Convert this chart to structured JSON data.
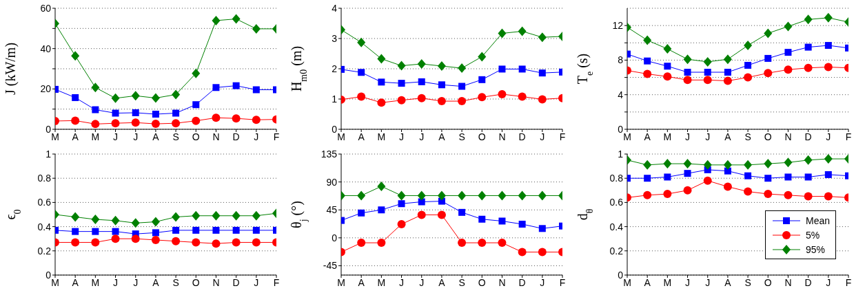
{
  "chart_data": [
    {
      "type": "line",
      "ylabel": "J (kW/m)",
      "categories": [
        "M",
        "A",
        "M",
        "J",
        "J",
        "A",
        "S",
        "O",
        "N",
        "D",
        "J",
        "F"
      ],
      "ylim": [
        0,
        60
      ],
      "yticks": [
        0,
        {
          "value": 10,
          "label": null
        },
        20,
        {
          "value": 30,
          "label": null
        },
        40,
        {
          "value": 50,
          "label": null
        },
        60
      ],
      "grid": "y",
      "legend": false,
      "line_style": "solid",
      "series": [
        {
          "color": "#0000ff",
          "marker": "square",
          "values": [
            19.8,
            15.7,
            9.7,
            8.0,
            8.2,
            7.5,
            8.0,
            12.2,
            20.7,
            21.6,
            19.6,
            19.6
          ]
        },
        {
          "color": "#ff0000",
          "marker": "circle",
          "values": [
            4.1,
            4.3,
            2.6,
            3.0,
            3.3,
            2.7,
            3.0,
            4.2,
            5.7,
            5.4,
            4.7,
            4.9
          ]
        },
        {
          "color": "#008000",
          "marker": "diamond",
          "values": [
            52.4,
            36.4,
            20.7,
            15.4,
            16.6,
            15.5,
            17.2,
            27.7,
            53.9,
            54.7,
            49.8,
            49.8
          ]
        }
      ]
    },
    {
      "type": "line",
      "ylabel": "H$_{m0}$ (m)",
      "categories": [
        "M",
        "A",
        "M",
        "J",
        "J",
        "A",
        "S",
        "O",
        "N",
        "D",
        "J",
        "F"
      ],
      "ylim": [
        0,
        4
      ],
      "yticks": [
        0,
        1,
        2,
        3,
        4
      ],
      "grid": "y",
      "legend": false,
      "line_style": "solid",
      "series": [
        {
          "color": "#0000ff",
          "marker": "square",
          "values": [
            1.98,
            1.88,
            1.56,
            1.52,
            1.57,
            1.47,
            1.42,
            1.64,
            1.99,
            1.99,
            1.86,
            1.89
          ]
        },
        {
          "color": "#ff0000",
          "marker": "circle",
          "values": [
            0.98,
            1.08,
            0.88,
            0.96,
            1.03,
            0.93,
            0.93,
            1.06,
            1.16,
            1.08,
            0.99,
            1.03
          ]
        },
        {
          "color": "#008000",
          "marker": "diamond",
          "values": [
            3.29,
            2.87,
            2.33,
            2.1,
            2.16,
            2.09,
            2.02,
            2.4,
            3.17,
            3.24,
            3.04,
            3.07
          ]
        }
      ]
    },
    {
      "type": "line",
      "ylabel": "T$_{e}$ (s)",
      "categories": [
        "M",
        "A",
        "M",
        "J",
        "J",
        "A",
        "S",
        "O",
        "N",
        "D",
        "J",
        "F"
      ],
      "ylim": [
        0,
        14
      ],
      "yticks": [
        0,
        {
          "value": 2,
          "label": null
        },
        4,
        {
          "value": 6,
          "label": null
        },
        8,
        {
          "value": 10,
          "label": null
        },
        12
      ],
      "grid": "y",
      "legend": false,
      "line_style": "solid",
      "series": [
        {
          "color": "#0000ff",
          "marker": "square",
          "values": [
            8.7,
            7.9,
            7.3,
            6.6,
            6.6,
            6.6,
            7.4,
            8.2,
            8.9,
            9.5,
            9.7,
            9.4
          ]
        },
        {
          "color": "#ff0000",
          "marker": "circle",
          "values": [
            6.8,
            6.4,
            6.1,
            5.7,
            5.7,
            5.6,
            6.0,
            6.5,
            6.9,
            7.1,
            7.2,
            7.1
          ]
        },
        {
          "color": "#008000",
          "marker": "diamond",
          "values": [
            11.8,
            10.3,
            9.3,
            8.1,
            7.8,
            8.1,
            9.7,
            11.1,
            11.9,
            12.7,
            12.9,
            12.4
          ]
        }
      ]
    },
    {
      "type": "line",
      "ylabel": "ϵ$_{0}$",
      "categories": [
        "M",
        "A",
        "M",
        "J",
        "J",
        "A",
        "S",
        "O",
        "N",
        "D",
        "J",
        "F"
      ],
      "ylim": [
        0,
        1
      ],
      "yticks": [
        0,
        0.2,
        0.4,
        0.6,
        0.8,
        1
      ],
      "grid": "y",
      "legend": false,
      "line_style": "solid",
      "series": [
        {
          "color": "#0000ff",
          "marker": "square",
          "values": [
            0.37,
            0.36,
            0.36,
            0.36,
            0.34,
            0.35,
            0.37,
            0.37,
            0.37,
            0.37,
            0.37,
            0.37
          ]
        },
        {
          "color": "#ff0000",
          "marker": "circle",
          "values": [
            0.27,
            0.27,
            0.27,
            0.3,
            0.3,
            0.29,
            0.28,
            0.27,
            0.26,
            0.27,
            0.27,
            0.27
          ]
        },
        {
          "color": "#008000",
          "marker": "diamond",
          "values": [
            0.5,
            0.48,
            0.46,
            0.45,
            0.43,
            0.44,
            0.48,
            0.49,
            0.49,
            0.49,
            0.49,
            0.51
          ]
        }
      ]
    },
    {
      "type": "line",
      "ylabel": "θ$_{j}$ (°)",
      "categories": [
        "M",
        "A",
        "M",
        "J",
        "J",
        "A",
        "S",
        "O",
        "N",
        "D",
        "J",
        "F"
      ],
      "ylim": [
        -60,
        135
      ],
      "yticks": [
        -45,
        0,
        45,
        90,
        135
      ],
      "grid": "y",
      "legend": false,
      "line_style": "solid",
      "series": [
        {
          "color": "#0000ff",
          "marker": "square",
          "values": [
            28,
            40,
            45,
            55,
            58,
            59,
            41,
            30,
            27,
            22,
            15,
            19
          ]
        },
        {
          "color": "#ff0000",
          "marker": "circle",
          "values": [
            -23,
            -8,
            -8,
            22,
            37,
            37,
            -8,
            -8,
            -8,
            -23,
            -23,
            -23
          ]
        },
        {
          "color": "#008000",
          "marker": "diamond",
          "values": [
            68,
            68,
            83,
            68,
            68,
            68,
            68,
            68,
            68,
            68,
            68,
            68
          ]
        }
      ]
    },
    {
      "type": "line",
      "ylabel": "d$_{θ}$",
      "categories": [
        "M",
        "A",
        "M",
        "J",
        "J",
        "A",
        "S",
        "O",
        "N",
        "D",
        "J",
        "F"
      ],
      "ylim": [
        0,
        1
      ],
      "yticks": [
        0,
        0.2,
        0.4,
        0.6,
        0.8,
        1
      ],
      "grid": "y",
      "legend": "bottom right",
      "line_style": "solid",
      "series": [
        {
          "name": "Mean",
          "color": "#0000ff",
          "marker": "square",
          "values": [
            0.8,
            0.8,
            0.81,
            0.84,
            0.87,
            0.86,
            0.82,
            0.8,
            0.81,
            0.81,
            0.83,
            0.82
          ]
        },
        {
          "name": "5%",
          "color": "#ff0000",
          "marker": "circle",
          "values": [
            0.64,
            0.66,
            0.67,
            0.7,
            0.78,
            0.73,
            0.69,
            0.67,
            0.66,
            0.65,
            0.65,
            0.64
          ]
        },
        {
          "name": "95%",
          "color": "#008000",
          "marker": "diamond",
          "values": [
            0.95,
            0.91,
            0.92,
            0.92,
            0.91,
            0.91,
            0.91,
            0.92,
            0.93,
            0.95,
            0.96,
            0.96
          ]
        }
      ]
    }
  ]
}
